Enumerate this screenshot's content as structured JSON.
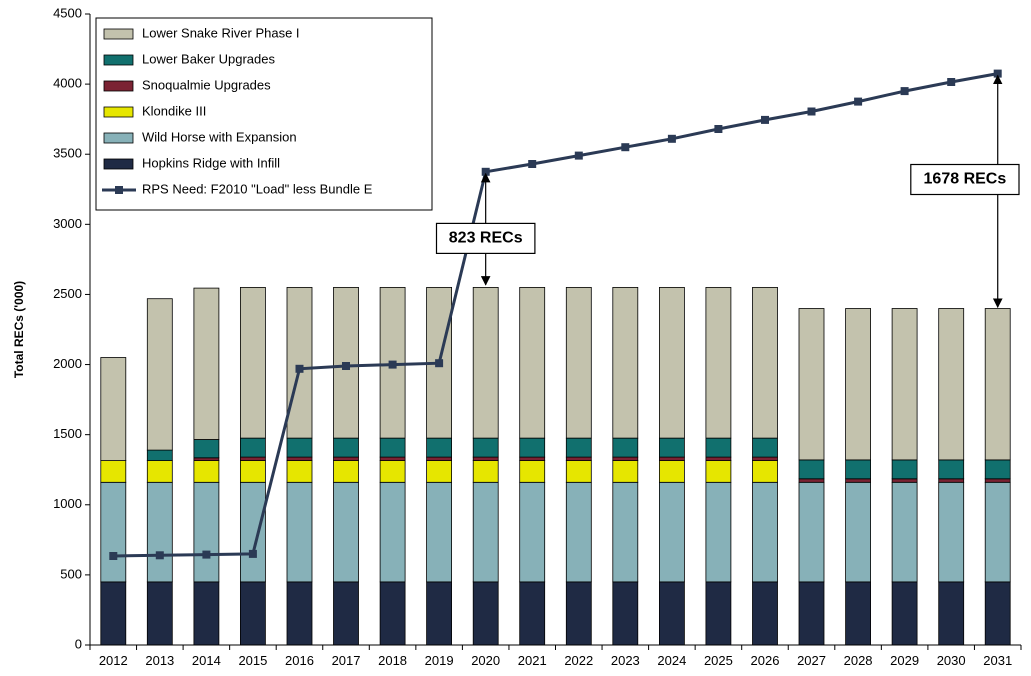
{
  "chart_data": {
    "type": "bar",
    "stacked": true,
    "title": "",
    "xlabel": "",
    "ylabel": "Total RECs ('000)",
    "ylim": [
      0,
      4500
    ],
    "yticks": [
      0,
      500,
      1000,
      1500,
      2000,
      2500,
      3000,
      3500,
      4000,
      4500
    ],
    "yticklabels": [
      "0",
      "500",
      "1000",
      "1500",
      "2000",
      "2500",
      "3000",
      "3500",
      "4000",
      "4500"
    ],
    "grid": false,
    "legend_position": "top-left",
    "categories": [
      "2012",
      "2013",
      "2014",
      "2015",
      "2016",
      "2017",
      "2018",
      "2019",
      "2020",
      "2021",
      "2022",
      "2023",
      "2024",
      "2025",
      "2026",
      "2027",
      "2028",
      "2029",
      "2030",
      "2031"
    ],
    "series": [
      {
        "name": "Hopkins Ridge with Infill",
        "kind": "bar",
        "color": "#1f2a44",
        "values": [
          450,
          450,
          450,
          450,
          450,
          450,
          450,
          450,
          450,
          450,
          450,
          450,
          450,
          450,
          450,
          450,
          450,
          450,
          450,
          450
        ]
      },
      {
        "name": "Wild Horse with Expansion",
        "kind": "bar",
        "color": "#87b1b8",
        "values": [
          710,
          710,
          710,
          710,
          710,
          710,
          710,
          710,
          710,
          710,
          710,
          710,
          710,
          710,
          710,
          710,
          710,
          710,
          710,
          710
        ]
      },
      {
        "name": "Klondike III",
        "kind": "bar",
        "color": "#e6e600",
        "values": [
          155,
          155,
          155,
          155,
          155,
          155,
          155,
          155,
          155,
          155,
          155,
          155,
          155,
          155,
          155,
          0,
          0,
          0,
          0,
          0
        ]
      },
      {
        "name": "Snoqualmie Upgrades",
        "kind": "bar",
        "color": "#7b2333",
        "values": [
          0,
          0,
          20,
          25,
          25,
          25,
          25,
          25,
          25,
          25,
          25,
          25,
          25,
          25,
          25,
          25,
          25,
          25,
          25,
          25
        ]
      },
      {
        "name": "Lower Baker Upgrades",
        "kind": "bar",
        "color": "#11706e",
        "values": [
          0,
          75,
          130,
          135,
          135,
          135,
          135,
          135,
          135,
          135,
          135,
          135,
          135,
          135,
          135,
          135,
          135,
          135,
          135,
          135
        ]
      },
      {
        "name": "Lower Snake River Phase I",
        "kind": "bar",
        "color": "#c3c2ad",
        "values": [
          735,
          1080,
          1080,
          1075,
          1075,
          1075,
          1075,
          1075,
          1075,
          1075,
          1075,
          1075,
          1075,
          1075,
          1075,
          1080,
          1080,
          1080,
          1080,
          1080
        ]
      },
      {
        "name": "RPS Need: F2010 \"Load\" less Bundle E",
        "kind": "line",
        "color": "#2b3a55",
        "values": [
          635,
          640,
          645,
          650,
          1970,
          1990,
          2000,
          2010,
          3375,
          3430,
          3490,
          3550,
          3610,
          3680,
          3745,
          3805,
          3875,
          3950,
          4015,
          4075
        ]
      }
    ],
    "annotations": [
      {
        "text": "823 RECs",
        "category": "2020",
        "from_value": 2555,
        "to_value": 3375,
        "label_value": 2900
      },
      {
        "text": "1678 RECs",
        "category": "2031",
        "from_value": 2395,
        "to_value": 4075,
        "label_value": 3320
      }
    ]
  }
}
